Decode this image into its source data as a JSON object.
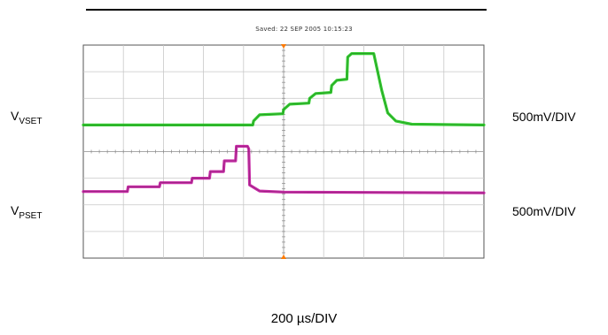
{
  "header": {
    "saved": "Saved:  22 SEP 2005  10:15:23"
  },
  "channels": [
    {
      "label_main": "V",
      "label_sub": "VSET",
      "scale": "500mV/DIV",
      "color": "#22c81e"
    },
    {
      "label_main": "V",
      "label_sub": "PSET",
      "scale": "500mV/DIV",
      "color": "#c21a9e"
    }
  ],
  "timebase": "200 µs/DIV",
  "chart_data": {
    "type": "line",
    "x_unit": "div",
    "xlim": [
      0,
      10
    ],
    "ylim": [
      -4,
      4
    ],
    "grid": true,
    "x_divisions": 10,
    "y_divisions": 8,
    "trigger_marker_x": 5,
    "series": [
      {
        "name": "VSET",
        "x": [
          0,
          4.23,
          4.25,
          4.4,
          4.98,
          5.0,
          5.15,
          5.63,
          5.65,
          5.8,
          6.18,
          6.2,
          6.33,
          6.58,
          6.6,
          6.7,
          7.25,
          7.45,
          7.6,
          7.8,
          8.2,
          10
        ],
        "y": [
          1.0,
          1.0,
          1.15,
          1.38,
          1.42,
          1.58,
          1.78,
          1.82,
          2.0,
          2.18,
          2.22,
          2.48,
          2.68,
          2.72,
          3.55,
          3.68,
          3.68,
          2.3,
          1.45,
          1.15,
          1.03,
          1.0
        ]
      },
      {
        "name": "PSET",
        "x": [
          0,
          1.1,
          1.12,
          1.9,
          1.92,
          2.7,
          2.72,
          3.15,
          3.17,
          3.5,
          3.52,
          3.8,
          3.82,
          4.1,
          4.13,
          4.15,
          4.4,
          5.0,
          10
        ],
        "y": [
          -1.5,
          -1.5,
          -1.32,
          -1.32,
          -1.17,
          -1.17,
          -1.0,
          -1.0,
          -0.75,
          -0.75,
          -0.35,
          -0.35,
          0.2,
          0.2,
          0.1,
          -1.25,
          -1.48,
          -1.52,
          -1.55
        ]
      }
    ]
  }
}
